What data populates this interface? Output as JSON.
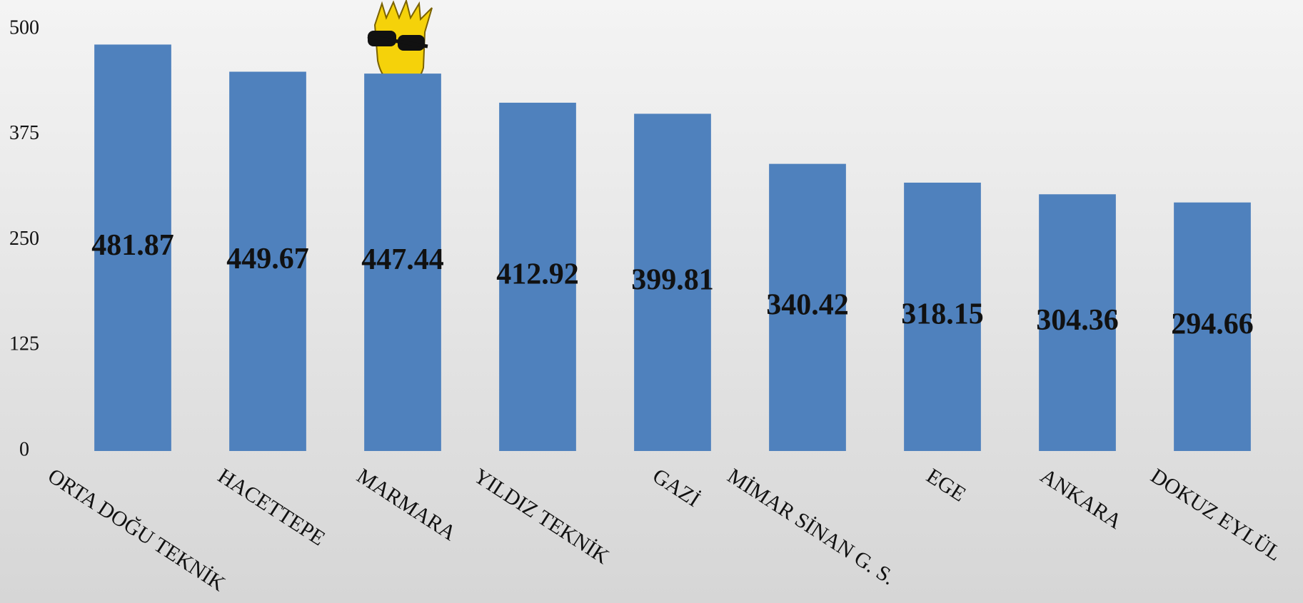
{
  "chart_data": {
    "type": "bar",
    "categories": [
      "ORTA DOĞU TEKNİK",
      "HACETTEPE",
      "MARMARA",
      "YILDIZ TEKNİK",
      "GAZİ",
      "MİMAR SİNAN G. S.",
      "EGE",
      "ANKARA",
      "DOKUZ EYLÜL"
    ],
    "values": [
      481.87,
      449.67,
      447.44,
      412.92,
      399.81,
      340.42,
      318.15,
      304.36,
      294.66
    ],
    "color": "#4f81bd",
    "ylim": [
      0,
      500
    ],
    "yticks": [
      0,
      125,
      250,
      375,
      500
    ],
    "grid": false
  }
}
